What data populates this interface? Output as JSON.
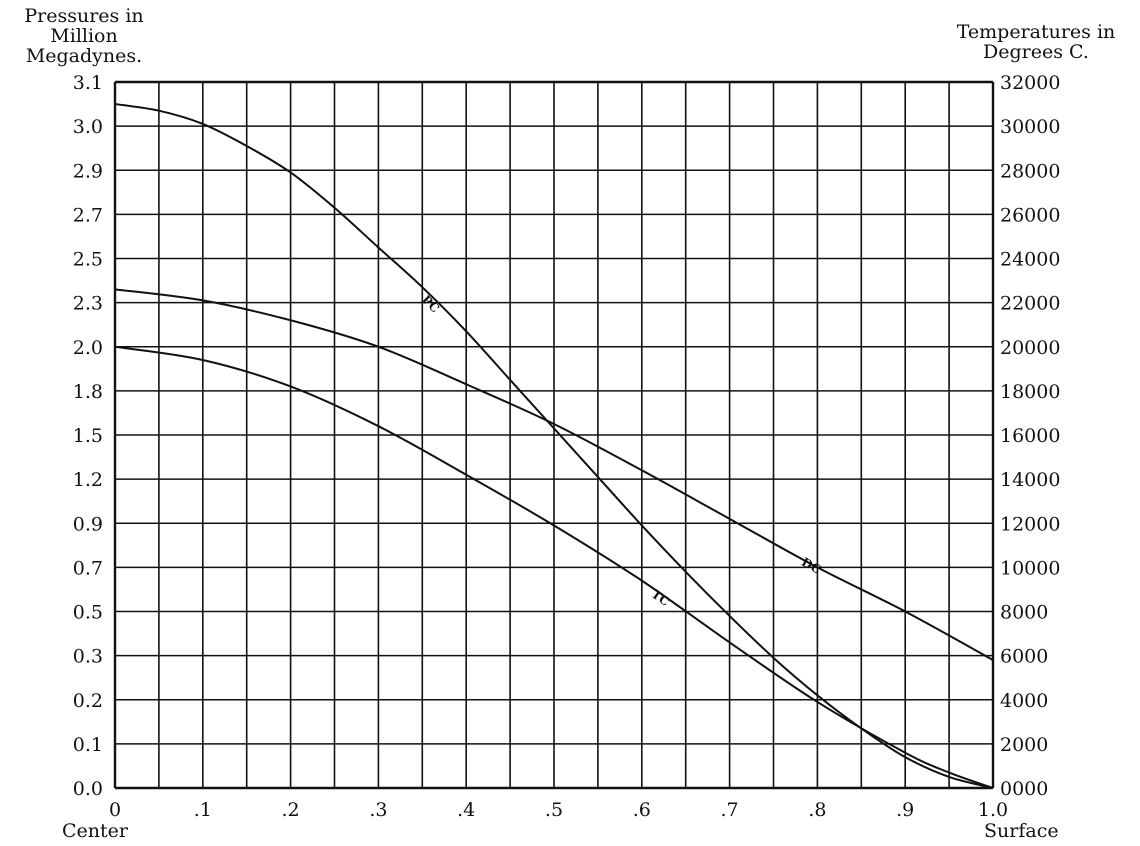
{
  "chart_data": {
    "type": "line",
    "left_axis_title": [
      "Pressures in",
      "Million",
      "Megadynes."
    ],
    "right_axis_title": [
      "Temperatures in",
      "Degrees C."
    ],
    "x_ticks": [
      "0",
      ".1",
      ".2",
      ".3",
      ".4",
      ".5",
      ".6",
      ".7",
      ".8",
      ".9",
      "1.0"
    ],
    "x_range": [
      0,
      1
    ],
    "x_left_note": "Center",
    "x_right_note": "Surface",
    "left_ticks": [
      "0.0",
      "0.1",
      "0.2",
      "0.3",
      "0.5",
      "0.7",
      "0.9",
      "1.2",
      "1.5",
      "1.8",
      "2.0",
      "2.3",
      "2.5",
      "2.7",
      "2.9",
      "3.0",
      "3.1"
    ],
    "right_ticks": [
      "0000",
      "2000",
      "4000",
      "6000",
      "8000",
      "10000",
      "12000",
      "14000",
      "16000",
      "18000",
      "20000",
      "22000",
      "24000",
      "26000",
      "28000",
      "30000",
      "32000"
    ],
    "right_range": [
      0,
      32000
    ],
    "grid": true,
    "series": [
      {
        "name": "PC",
        "axis": "right",
        "x": [
          0,
          0.05,
          0.1,
          0.15,
          0.2,
          0.25,
          0.3,
          0.35,
          0.4,
          0.45,
          0.5,
          0.55,
          0.6,
          0.65,
          0.7,
          0.75,
          0.8,
          0.85,
          0.9,
          0.95,
          1.0
        ],
        "values": [
          31000,
          30700,
          30100,
          29100,
          27900,
          26300,
          24500,
          22700,
          20700,
          18500,
          16300,
          14100,
          11900,
          9800,
          7800,
          5900,
          4200,
          2700,
          1400,
          500,
          0
        ]
      },
      {
        "name": "DC",
        "axis": "right",
        "x": [
          0,
          0.1,
          0.2,
          0.3,
          0.4,
          0.5,
          0.6,
          0.7,
          0.8,
          0.9,
          1.0
        ],
        "values": [
          22600,
          22100,
          21200,
          20000,
          18300,
          16500,
          14400,
          12200,
          10000,
          8000,
          5800
        ]
      },
      {
        "name": "TC",
        "axis": "right",
        "x": [
          0,
          0.1,
          0.2,
          0.3,
          0.4,
          0.5,
          0.6,
          0.7,
          0.8,
          0.9,
          0.95,
          1.0
        ],
        "values": [
          20000,
          19400,
          18200,
          16400,
          14200,
          11900,
          9400,
          6600,
          3900,
          1600,
          700,
          0
        ]
      }
    ]
  }
}
